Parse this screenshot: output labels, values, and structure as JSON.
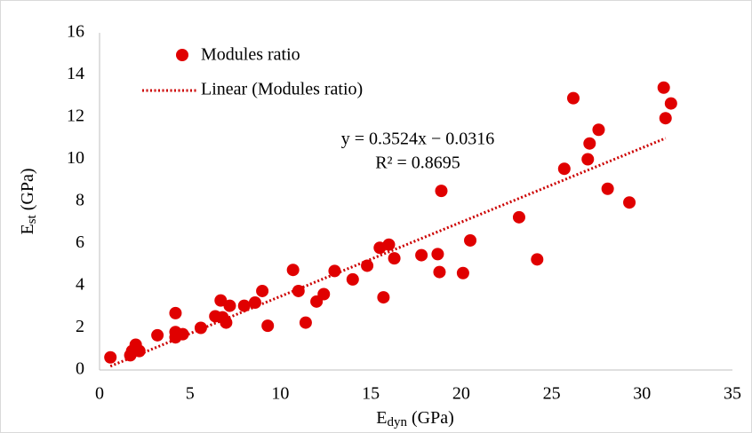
{
  "chart_data": {
    "type": "scatter",
    "x_label": {
      "main": "E",
      "sub": "dyn",
      "unit": "(GPa)"
    },
    "y_label": {
      "main": "E",
      "sub": "st",
      "unit": "(GPa)"
    },
    "series": [
      {
        "name": "Modules ratio",
        "color": "#e00000",
        "x": [
          0.6,
          1.7,
          1.8,
          2.0,
          2.2,
          3.2,
          4.2,
          4.2,
          4.2,
          4.6,
          5.6,
          6.4,
          6.7,
          6.8,
          7.0,
          7.2,
          8.0,
          8.6,
          9.0,
          9.3,
          10.7,
          11.0,
          11.4,
          12.0,
          12.4,
          13.0,
          14.0,
          14.8,
          15.5,
          15.7,
          16.0,
          16.3,
          17.8,
          18.7,
          18.8,
          18.9,
          20.1,
          20.5,
          23.2,
          24.2,
          25.7,
          26.2,
          27.0,
          27.1,
          27.6,
          28.1,
          29.3,
          31.2,
          31.3,
          31.6
        ],
        "values": [
          0.6,
          0.7,
          0.9,
          1.2,
          0.9,
          1.65,
          2.7,
          1.55,
          1.8,
          1.7,
          2.0,
          2.55,
          3.3,
          2.5,
          2.25,
          3.05,
          3.05,
          3.2,
          3.75,
          2.1,
          4.75,
          3.75,
          2.25,
          3.25,
          3.6,
          4.7,
          4.3,
          4.95,
          5.8,
          3.45,
          5.95,
          5.3,
          5.45,
          5.5,
          4.65,
          8.5,
          4.6,
          6.15,
          7.25,
          5.25,
          9.55,
          12.9,
          10.0,
          10.75,
          11.4,
          8.6,
          7.95,
          13.4,
          11.95,
          12.65
        ]
      }
    ],
    "trendline": {
      "name": "Linear (Modules ratio)",
      "color": "#cc0000",
      "equation": "y = 0.3524x − 0.0316",
      "r_squared": "R² = 0.8695",
      "slope": 0.3524,
      "intercept": -0.0316,
      "x_range": [
        0.6,
        31.3
      ]
    },
    "xlim": [
      0,
      35
    ],
    "xticks": [
      0,
      5,
      10,
      15,
      20,
      25,
      30,
      35
    ],
    "ylim": [
      0,
      16
    ],
    "yticks": [
      0,
      2,
      4,
      6,
      8,
      10,
      12,
      14,
      16
    ],
    "grid": false
  }
}
